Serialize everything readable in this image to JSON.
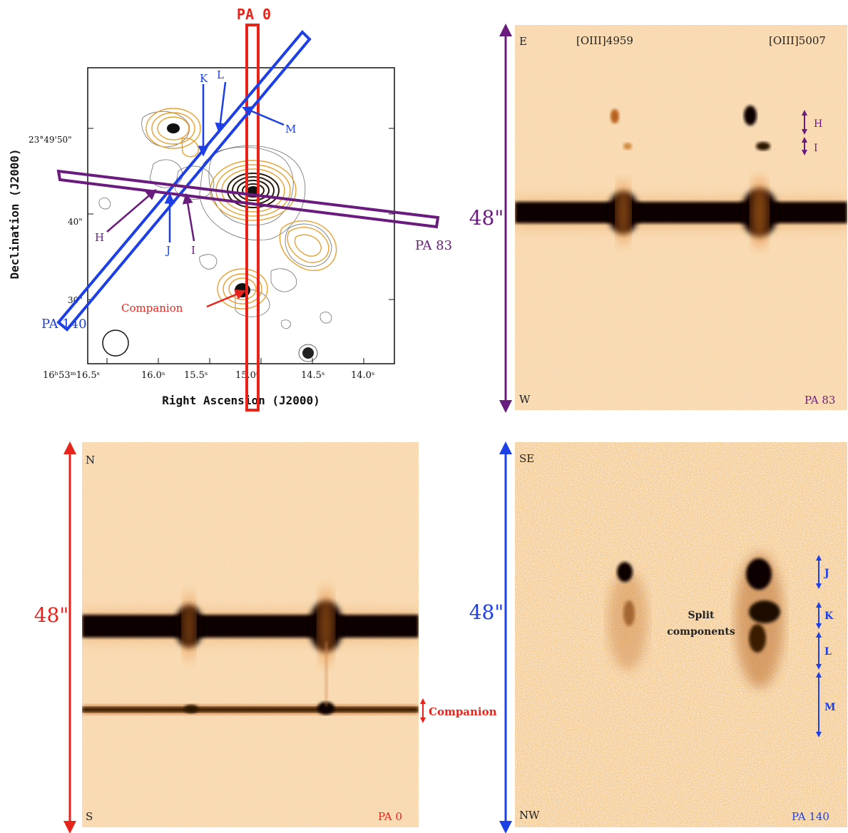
{
  "colors": {
    "red": "#e8231c",
    "blue": "#1c3fe6",
    "purple": "#6a1b7e",
    "spectrum_bg": "#fbe2c2",
    "spectrum_dark": "#0a0402",
    "contour_orange": "#e8a030",
    "contour_gray": "#6e6e6e"
  },
  "finder": {
    "ylabel": "Declination (J2000)",
    "xlabel": "Right Ascension (J2000)",
    "ra_ticks": [
      "16ʰ53ᵐ16.5ˢ",
      "16.0ˢ",
      "15.5ˢ",
      "15.0ˢ",
      "14.5ˢ",
      "14.0ˢ"
    ],
    "dec_ticks": [
      "23°49'50\"",
      "40\"",
      "30\""
    ],
    "slits": {
      "pa0": "PA 0",
      "pa83": "PA 83",
      "pa140": "PA 140"
    },
    "markers": {
      "K": "K",
      "L": "L",
      "M": "M",
      "H": "H",
      "I": "I",
      "J": "J"
    },
    "companion": "Companion"
  },
  "panel_pa83": {
    "top_label": "E",
    "bottom_label": "W",
    "line1": "[OIII]4959",
    "line2": "[OIII]5007",
    "scale": "48\"",
    "pa_label": "PA 83",
    "marker_h": "H",
    "marker_i": "I"
  },
  "panel_pa0": {
    "top_label": "N",
    "bottom_label": "S",
    "scale": "48\"",
    "pa_label": "PA 0",
    "companion": "Companion"
  },
  "panel_pa140": {
    "top_label": "SE",
    "bottom_label": "NW",
    "scale": "48\"",
    "pa_label": "PA 140",
    "split_line1": "Split",
    "split_line2": "components",
    "markers": [
      "J",
      "K",
      "L",
      "M"
    ]
  }
}
